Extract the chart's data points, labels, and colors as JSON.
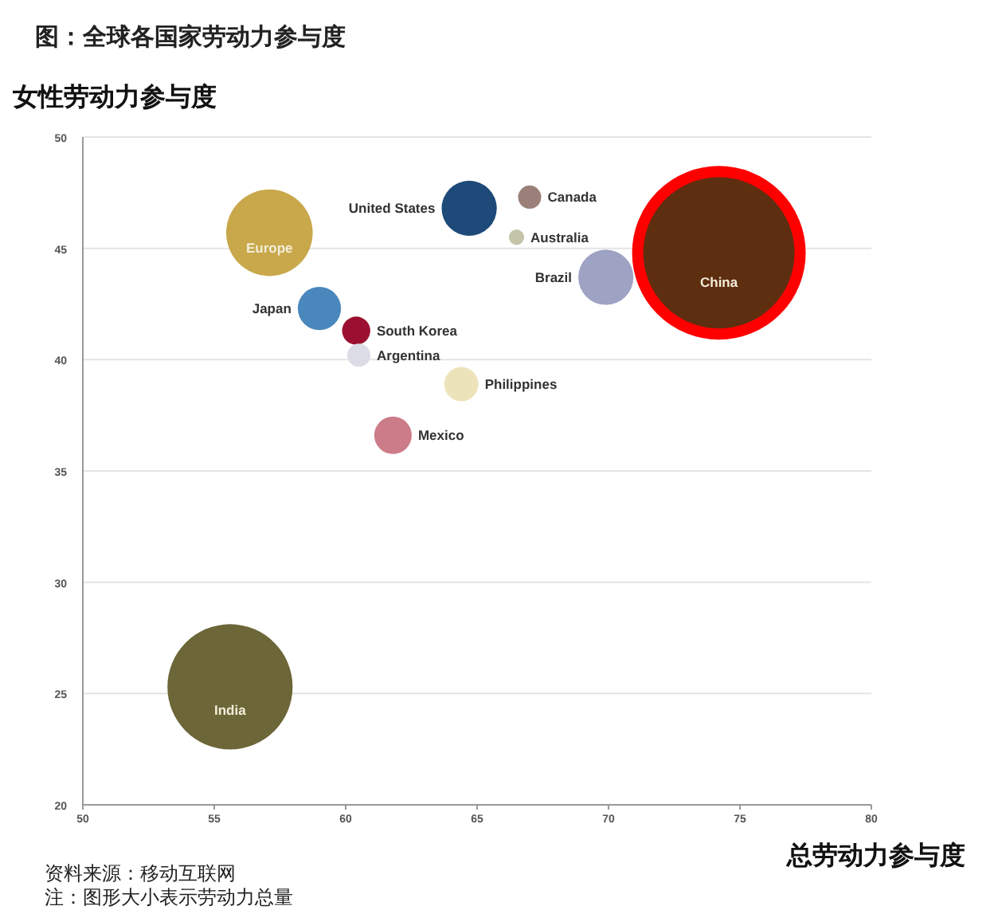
{
  "chart_data": {
    "type": "bubble",
    "title": "图：全球各国家劳动力参与度",
    "ylabel": "女性劳动力参与度",
    "xlabel": "总劳动力参与度",
    "annotations": [
      "资料来源：移动互联网",
      "注：图形大小表示劳动力总量"
    ],
    "xlim": [
      50,
      80
    ],
    "xticks": [
      50,
      55,
      60,
      65,
      70,
      75,
      80
    ],
    "ylim": [
      20,
      50
    ],
    "yticks": [
      20,
      25,
      30,
      35,
      40,
      45,
      50
    ],
    "grid": "y",
    "series": [
      {
        "name": "Europe",
        "color": "#c8a84b",
        "x": [
          57.1
        ],
        "values": [
          45.7
        ],
        "sizes": [
          0.32
        ]
      },
      {
        "name": "United States",
        "color": "#1d4a78",
        "x": [
          64.7
        ],
        "values": [
          46.8
        ],
        "sizes": [
          0.13
        ]
      },
      {
        "name": "Canada",
        "color": "#9a8078",
        "x": [
          67.0
        ],
        "values": [
          47.3
        ],
        "sizes": [
          0.023
        ]
      },
      {
        "name": "Australia",
        "color": "#c3c4a8",
        "x": [
          66.5
        ],
        "values": [
          45.5
        ],
        "sizes": [
          0.01
        ]
      },
      {
        "name": "China",
        "color": "#5e2e10",
        "x": [
          74.2
        ],
        "values": [
          44.8
        ],
        "sizes": [
          1
        ]
      },
      {
        "name": "Brazil",
        "color": "#9ea3c4",
        "x": [
          69.9
        ],
        "values": [
          43.7
        ],
        "sizes": [
          0.13
        ]
      },
      {
        "name": "Japan",
        "color": "#4a87bc",
        "x": [
          59.0
        ],
        "values": [
          42.3
        ],
        "sizes": [
          0.08
        ]
      },
      {
        "name": "South Korea",
        "color": "#9b1030",
        "x": [
          60.4
        ],
        "values": [
          41.3
        ],
        "sizes": [
          0.034
        ]
      },
      {
        "name": "Argentina",
        "color": "#dcdce6",
        "x": [
          60.5
        ],
        "values": [
          40.2
        ],
        "sizes": [
          0.023
        ]
      },
      {
        "name": "Philippines",
        "color": "#ede3bb",
        "x": [
          64.4
        ],
        "values": [
          38.9
        ],
        "sizes": [
          0.05
        ]
      },
      {
        "name": "Mexico",
        "color": "#cc7c88",
        "x": [
          61.8
        ],
        "values": [
          36.6
        ],
        "sizes": [
          0.06
        ]
      },
      {
        "name": "India",
        "color": "#6c6638",
        "x": [
          55.6
        ],
        "values": [
          25.3
        ],
        "sizes": [
          0.67
        ]
      }
    ]
  }
}
